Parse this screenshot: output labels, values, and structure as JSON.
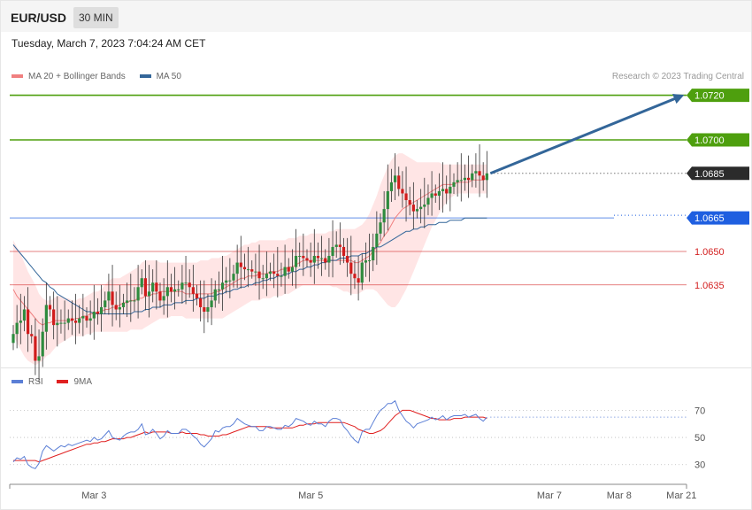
{
  "header": {
    "symbol": "EUR/USD",
    "timeframe": "30 MIN"
  },
  "datetime": "Tuesday, March 7, 2023 7:04:24 AM CET",
  "legend": {
    "items": [
      {
        "label": "MA 20 + Bollinger Bands",
        "color": "#f08080"
      },
      {
        "label": "MA 50",
        "color": "#336699"
      }
    ],
    "credit": "Research © 2023 Trading Central"
  },
  "rsi_legend": {
    "items": [
      {
        "label": "RSI",
        "color": "#5b7fd6"
      },
      {
        "label": "9MA",
        "color": "#e02020"
      }
    ]
  },
  "colors": {
    "bull": "#2e8b3e",
    "bear": "#d01c1c",
    "target": "#4e9f0e",
    "current": "#2b2b2b",
    "pivot": "#1f5fe0",
    "support": "#d32020",
    "bands": "#ffe0e0"
  },
  "chart_data": [
    {
      "type": "candlestick",
      "symbol": "EUR/USD",
      "timeframe": "30 MIN",
      "ylim": [
        1.0598,
        1.0725
      ],
      "x_ticks": [
        "Mar 3",
        "Mar 5",
        "Mar 7",
        "Mar 8",
        "Mar 21"
      ],
      "levels": [
        {
          "value": 1.072,
          "label": "1.0720",
          "kind": "target"
        },
        {
          "value": 1.07,
          "label": "1.0700",
          "kind": "target"
        },
        {
          "value": 1.0685,
          "label": "1.0685",
          "kind": "current"
        },
        {
          "value": 1.0665,
          "label": "1.0665",
          "kind": "pivot"
        },
        {
          "value": 1.065,
          "label": "1.0650",
          "kind": "support"
        },
        {
          "value": 1.0635,
          "label": "1.0635",
          "kind": "support"
        }
      ],
      "close": [
        1.0613,
        1.0618,
        1.0619,
        1.0624,
        1.0613,
        1.0612,
        1.0601,
        1.0603,
        1.0614,
        1.0626,
        1.0624,
        1.0617,
        1.0618,
        1.0618,
        1.0618,
        1.062,
        1.0619,
        1.0618,
        1.062,
        1.0621,
        1.0619,
        1.062,
        1.0623,
        1.0622,
        1.0625,
        1.0628,
        1.0632,
        1.0626,
        1.0624,
        1.0625,
        1.0627,
        1.0628,
        1.0628,
        1.0628,
        1.0634,
        1.0638,
        1.063,
        1.0632,
        1.0636,
        1.0632,
        1.0628,
        1.063,
        1.0634,
        1.0632,
        1.0633,
        1.0633,
        1.0636,
        1.0636,
        1.0634,
        1.0631,
        1.0629,
        1.0625,
        1.0623,
        1.0625,
        1.0628,
        1.0633,
        1.0633,
        1.0636,
        1.0637,
        1.0637,
        1.064,
        1.0645,
        1.0643,
        1.0642,
        1.0642,
        1.0641,
        1.0641,
        1.0638,
        1.0638,
        1.064,
        1.0641,
        1.064,
        1.0639,
        1.0639,
        1.0643,
        1.0641,
        1.0643,
        1.0648,
        1.0648,
        1.0647,
        1.0646,
        1.0645,
        1.0648,
        1.0647,
        1.0647,
        1.0645,
        1.0648,
        1.0652,
        1.0653,
        1.0652,
        1.0648,
        1.0645,
        1.064,
        1.0638,
        1.0636,
        1.0645,
        1.0646,
        1.0646,
        1.0652,
        1.0658,
        1.0663,
        1.0669,
        1.0677,
        1.0681,
        1.0684,
        1.0678,
        1.0676,
        1.0673,
        1.0671,
        1.0668,
        1.0669,
        1.067,
        1.0671,
        1.0674,
        1.0676,
        1.0675,
        1.0677,
        1.0678,
        1.0676,
        1.0679,
        1.0681,
        1.0682,
        1.0682,
        1.0683,
        1.0682,
        1.0685,
        1.0686,
        1.0684,
        1.0682,
        1.0685
      ],
      "ma20": [
        1.0633,
        1.063,
        1.0628,
        1.0626,
        1.0624,
        1.0622,
        1.062,
        1.0618,
        1.0617,
        1.0618,
        1.0618,
        1.0619,
        1.0619,
        1.0619,
        1.0619,
        1.0619,
        1.0619,
        1.062,
        1.062,
        1.0621,
        1.0621,
        1.0622,
        1.0622,
        1.0623,
        1.0623,
        1.0624,
        1.0624,
        1.0625,
        1.0625,
        1.0626,
        1.0627,
        1.0627,
        1.0628,
        1.0628,
        1.0629,
        1.0629,
        1.063,
        1.063,
        1.0631,
        1.0631,
        1.0632,
        1.0632,
        1.0632,
        1.0632,
        1.0632,
        1.0632,
        1.0632,
        1.0631,
        1.0631,
        1.0631,
        1.0631,
        1.0631,
        1.0631,
        1.0631,
        1.0631,
        1.0632,
        1.0632,
        1.0633,
        1.0634,
        1.0635,
        1.0636,
        1.0637,
        1.0638,
        1.0638,
        1.0639,
        1.0639,
        1.0639,
        1.064,
        1.064,
        1.064,
        1.0641,
        1.0641,
        1.0641,
        1.0642,
        1.0642,
        1.0643,
        1.0643,
        1.0644,
        1.0645,
        1.0646,
        1.0646,
        1.0646,
        1.0646,
        1.0646,
        1.0646,
        1.0646,
        1.0646,
        1.0646,
        1.0646,
        1.0646,
        1.0646,
        1.0646,
        1.0646,
        1.0645,
        1.0645,
        1.0646,
        1.0647,
        1.0648,
        1.065,
        1.0652,
        1.0654,
        1.0657,
        1.0659,
        1.0662,
        1.0665,
        1.0667,
        1.0669,
        1.067,
        1.0671,
        1.0672,
        1.0673,
        1.0674,
        1.0675,
        1.0676,
        1.0677,
        1.0678,
        1.0679,
        1.068,
        1.068,
        1.068,
        1.068,
        1.0681,
        1.0681,
        1.0681,
        1.0681,
        1.0682,
        1.0682,
        1.0682,
        1.0682,
        1.0683
      ],
      "ma50": [
        1.0653,
        1.0651,
        1.0649,
        1.0647,
        1.0645,
        1.0643,
        1.0641,
        1.0639,
        1.0637,
        1.0636,
        1.0634,
        1.0633,
        1.0631,
        1.063,
        1.0629,
        1.0628,
        1.0627,
        1.0626,
        1.0625,
        1.0624,
        1.0623,
        1.0623,
        1.0622,
        1.0622,
        1.0622,
        1.0622,
        1.0622,
        1.0622,
        1.0622,
        1.0622,
        1.0622,
        1.0622,
        1.0622,
        1.0623,
        1.0623,
        1.0623,
        1.0624,
        1.0624,
        1.0625,
        1.0625,
        1.0625,
        1.0626,
        1.0626,
        1.0626,
        1.0627,
        1.0627,
        1.0627,
        1.0628,
        1.0628,
        1.0628,
        1.0629,
        1.0629,
        1.0629,
        1.063,
        1.063,
        1.063,
        1.0631,
        1.0631,
        1.0632,
        1.0632,
        1.0633,
        1.0633,
        1.0634,
        1.0634,
        1.0635,
        1.0635,
        1.0636,
        1.0636,
        1.0637,
        1.0637,
        1.0638,
        1.0638,
        1.0639,
        1.0639,
        1.064,
        1.064,
        1.0641,
        1.0641,
        1.0642,
        1.0642,
        1.0643,
        1.0643,
        1.0644,
        1.0644,
        1.0645,
        1.0645,
        1.0646,
        1.0646,
        1.0646,
        1.0647,
        1.0647,
        1.0647,
        1.0648,
        1.0648,
        1.0648,
        1.0649,
        1.0649,
        1.065,
        1.0651,
        1.0652,
        1.0652,
        1.0653,
        1.0654,
        1.0655,
        1.0656,
        1.0657,
        1.0658,
        1.0659,
        1.0659,
        1.066,
        1.066,
        1.0661,
        1.0661,
        1.0662,
        1.0662,
        1.0662,
        1.0663,
        1.0663,
        1.0663,
        1.0664,
        1.0664,
        1.0664,
        1.0664,
        1.0665,
        1.0665,
        1.0665,
        1.0665,
        1.0665,
        1.0665,
        1.0665
      ],
      "bb_upper": [
        1.0655,
        1.0652,
        1.0649,
        1.0645,
        1.0641,
        1.0638,
        1.0635,
        1.0631,
        1.0629,
        1.0628,
        1.0628,
        1.0629,
        1.063,
        1.063,
        1.0629,
        1.0629,
        1.0628,
        1.0628,
        1.0629,
        1.0629,
        1.063,
        1.0631,
        1.0632,
        1.0632,
        1.0633,
        1.0635,
        1.0637,
        1.0638,
        1.0638,
        1.0638,
        1.0639,
        1.064,
        1.0641,
        1.0642,
        1.0643,
        1.0645,
        1.0646,
        1.0646,
        1.0646,
        1.0646,
        1.0645,
        1.0645,
        1.0645,
        1.0645,
        1.0645,
        1.0645,
        1.0645,
        1.0645,
        1.0645,
        1.0645,
        1.0645,
        1.0646,
        1.0646,
        1.0646,
        1.0647,
        1.0647,
        1.0647,
        1.0648,
        1.0648,
        1.0649,
        1.065,
        1.0651,
        1.0652,
        1.0653,
        1.0653,
        1.0654,
        1.0654,
        1.0655,
        1.0655,
        1.0655,
        1.0655,
        1.0655,
        1.0655,
        1.0655,
        1.0655,
        1.0656,
        1.0656,
        1.0656,
        1.0657,
        1.0657,
        1.0657,
        1.0658,
        1.0658,
        1.0658,
        1.0658,
        1.0658,
        1.0659,
        1.0659,
        1.066,
        1.066,
        1.066,
        1.066,
        1.066,
        1.066,
        1.0661,
        1.0662,
        1.0664,
        1.0667,
        1.0671,
        1.0675,
        1.068,
        1.0684,
        1.0688,
        1.0691,
        1.0693,
        1.0694,
        1.0694,
        1.0693,
        1.0692,
        1.0691,
        1.069,
        1.069,
        1.069,
        1.069,
        1.069,
        1.069,
        1.069,
        1.0689,
        1.0689,
        1.0689,
        1.0689,
        1.0689,
        1.0689,
        1.0689,
        1.0689,
        1.0689,
        1.0689,
        1.0689,
        1.0689,
        1.0689
      ],
      "bb_lower": [
        1.0613,
        1.0609,
        1.0606,
        1.0603,
        1.0601,
        1.06,
        1.0599,
        1.06,
        1.0601,
        1.0603,
        1.0604,
        1.0606,
        1.0608,
        1.0609,
        1.061,
        1.0611,
        1.0612,
        1.0612,
        1.0612,
        1.0612,
        1.0613,
        1.0613,
        1.0614,
        1.0614,
        1.0614,
        1.0614,
        1.0614,
        1.0614,
        1.0614,
        1.0614,
        1.0614,
        1.0614,
        1.0615,
        1.0615,
        1.0615,
        1.0615,
        1.0616,
        1.0617,
        1.0618,
        1.0619,
        1.062,
        1.062,
        1.062,
        1.0621,
        1.0621,
        1.0621,
        1.0621,
        1.062,
        1.062,
        1.062,
        1.062,
        1.062,
        1.062,
        1.062,
        1.062,
        1.062,
        1.062,
        1.062,
        1.0621,
        1.0622,
        1.0623,
        1.0624,
        1.0625,
        1.0626,
        1.0627,
        1.0628,
        1.0628,
        1.0628,
        1.0629,
        1.0629,
        1.0629,
        1.063,
        1.063,
        1.063,
        1.0631,
        1.0631,
        1.0632,
        1.0633,
        1.0634,
        1.0635,
        1.0635,
        1.0635,
        1.0635,
        1.0635,
        1.0635,
        1.0635,
        1.0635,
        1.0634,
        1.0634,
        1.0633,
        1.0632,
        1.0632,
        1.0631,
        1.0631,
        1.0631,
        1.0632,
        1.0633,
        1.0633,
        1.0633,
        1.0632,
        1.063,
        1.0628,
        1.0626,
        1.0625,
        1.0625,
        1.0627,
        1.063,
        1.0633,
        1.0637,
        1.0641,
        1.0645,
        1.0649,
        1.0653,
        1.0657,
        1.0661,
        1.0664,
        1.0667,
        1.067,
        1.0672,
        1.0674,
        1.0675,
        1.0676,
        1.0676,
        1.0676,
        1.0676,
        1.0676,
        1.0676,
        1.0676,
        1.0676,
        1.0676
      ]
    },
    {
      "type": "line",
      "name": "RSI",
      "ylim": [
        22,
        82
      ],
      "y_ticks": [
        30,
        50,
        70
      ],
      "series": [
        {
          "name": "RSI",
          "color": "#5b7fd6",
          "values": [
            32,
            35,
            34,
            36,
            30,
            28,
            27,
            31,
            40,
            44,
            42,
            40,
            42,
            44,
            43,
            45,
            44,
            45,
            46,
            47,
            48,
            47,
            50,
            48,
            49,
            52,
            55,
            50,
            49,
            48,
            51,
            53,
            54,
            54,
            56,
            60,
            52,
            53,
            56,
            53,
            49,
            51,
            55,
            53,
            53,
            53,
            56,
            56,
            54,
            51,
            49,
            45,
            43,
            46,
            49,
            55,
            54,
            57,
            58,
            58,
            60,
            64,
            62,
            60,
            59,
            58,
            58,
            55,
            55,
            58,
            58,
            57,
            56,
            56,
            59,
            58,
            60,
            64,
            63,
            62,
            60,
            59,
            62,
            60,
            60,
            58,
            62,
            64,
            64,
            63,
            58,
            55,
            51,
            48,
            46,
            54,
            56,
            56,
            61,
            66,
            70,
            72,
            75,
            75,
            77,
            70,
            66,
            62,
            60,
            57,
            60,
            61,
            62,
            63,
            65,
            63,
            64,
            66,
            63,
            65,
            66,
            66,
            66,
            67,
            65,
            66,
            67,
            64,
            62,
            65
          ]
        },
        {
          "name": "9MA",
          "color": "#e02020",
          "values": [
            33,
            33,
            33,
            33,
            33,
            33,
            33,
            32,
            33,
            34,
            35,
            36,
            37,
            38,
            39,
            40,
            41,
            42,
            43,
            44,
            45,
            45,
            46,
            46,
            47,
            47,
            48,
            49,
            49,
            49,
            49,
            50,
            50,
            51,
            52,
            53,
            54,
            53,
            54,
            54,
            54,
            54,
            54,
            53,
            53,
            53,
            54,
            53,
            53,
            53,
            53,
            52,
            52,
            51,
            51,
            51,
            51,
            52,
            52,
            53,
            54,
            55,
            56,
            57,
            58,
            58,
            58,
            58,
            58,
            58,
            57,
            57,
            57,
            57,
            57,
            57,
            57,
            58,
            59,
            59,
            60,
            60,
            60,
            61,
            61,
            61,
            61,
            61,
            61,
            61,
            61,
            60,
            59,
            58,
            56,
            55,
            54,
            53,
            53,
            54,
            55,
            57,
            60,
            63,
            66,
            68,
            70,
            70,
            70,
            69,
            68,
            67,
            66,
            65,
            64,
            64,
            63,
            63,
            63,
            63,
            64,
            64,
            64,
            65,
            65,
            65,
            65,
            65,
            65,
            64
          ]
        }
      ]
    }
  ]
}
